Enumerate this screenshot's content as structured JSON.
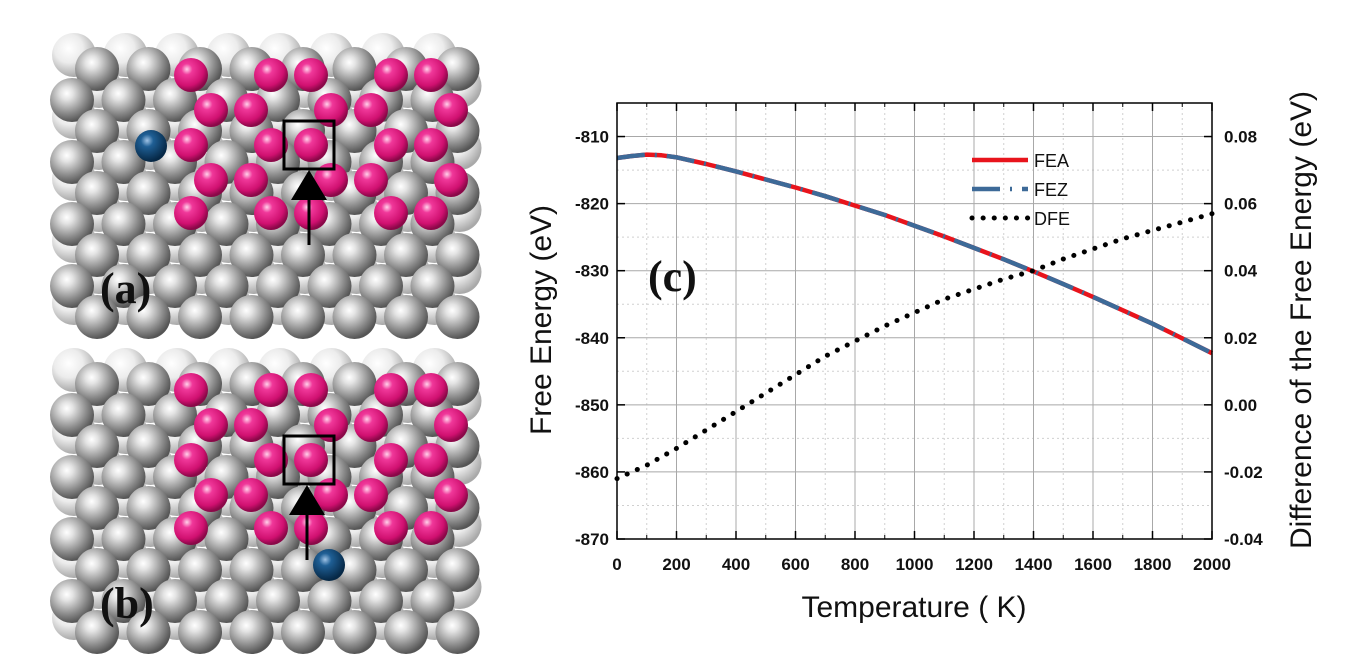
{
  "panels": {
    "a_label": "(a)",
    "b_label": "(b)",
    "c_label": "(c)"
  },
  "colors": {
    "substrate": "#8f8f8f",
    "substrate_light": "#d8d8d8",
    "adatom": "#e0207a",
    "dopant": "#0f4a7a",
    "fea": "#e8141c",
    "fez": "#3d6a98",
    "dfe": "#000000"
  },
  "chart_data": {
    "type": "line",
    "title": "",
    "xlabel": "Temperature ( K)",
    "ylabel": "Free Energy (eV)",
    "y2label": "Difference of the Free Energy (eV)",
    "xlim": [
      0,
      2000
    ],
    "ylim": [
      -870,
      -805
    ],
    "y2lim": [
      -0.04,
      0.09
    ],
    "xticks": [
      0,
      200,
      400,
      600,
      800,
      1000,
      1200,
      1400,
      1600,
      1800,
      2000
    ],
    "yticks": [
      -870,
      -860,
      -850,
      -840,
      -830,
      -820,
      -810
    ],
    "y2ticks": [
      -0.04,
      -0.02,
      0.0,
      0.02,
      0.04,
      0.06,
      0.08
    ],
    "grid": true,
    "legend_position": "top-right",
    "series": [
      {
        "name": "FEA",
        "axis": "left",
        "style": "solid",
        "x": [
          0,
          50,
          100,
          150,
          200,
          300,
          400,
          500,
          600,
          700,
          800,
          900,
          1000,
          1100,
          1200,
          1300,
          1400,
          1500,
          1600,
          1700,
          1800,
          1900,
          2000
        ],
        "y": [
          -813.2,
          -812.9,
          -812.7,
          -812.8,
          -813.1,
          -814.1,
          -815.2,
          -816.4,
          -817.6,
          -818.9,
          -820.3,
          -821.7,
          -823.3,
          -824.9,
          -826.6,
          -828.3,
          -830.1,
          -832.0,
          -833.9,
          -835.9,
          -837.9,
          -840.1,
          -842.3
        ]
      },
      {
        "name": "FEZ",
        "axis": "left",
        "style": "dashdot",
        "x": [
          0,
          50,
          100,
          150,
          200,
          300,
          400,
          500,
          600,
          700,
          800,
          900,
          1000,
          1100,
          1200,
          1300,
          1400,
          1500,
          1600,
          1700,
          1800,
          1900,
          2000
        ],
        "y": [
          -813.2,
          -812.9,
          -812.7,
          -812.8,
          -813.1,
          -814.1,
          -815.2,
          -816.4,
          -817.6,
          -818.9,
          -820.3,
          -821.7,
          -823.3,
          -824.9,
          -826.6,
          -828.3,
          -830.1,
          -832.0,
          -833.9,
          -835.9,
          -837.9,
          -840.1,
          -842.3
        ]
      },
      {
        "name": "DFE",
        "axis": "right",
        "style": "dotted",
        "x": [
          0,
          100,
          200,
          300,
          400,
          500,
          600,
          700,
          800,
          900,
          1000,
          1100,
          1200,
          1300,
          1400,
          1500,
          1600,
          1700,
          1800,
          1900,
          2000
        ],
        "y": [
          -0.022,
          -0.018,
          -0.013,
          -0.0075,
          -0.002,
          0.0035,
          0.009,
          0.0145,
          0.019,
          0.0235,
          0.0275,
          0.0315,
          0.0345,
          0.0375,
          0.04,
          0.0435,
          0.0465,
          0.0495,
          0.052,
          0.0545,
          0.057
        ]
      }
    ]
  }
}
